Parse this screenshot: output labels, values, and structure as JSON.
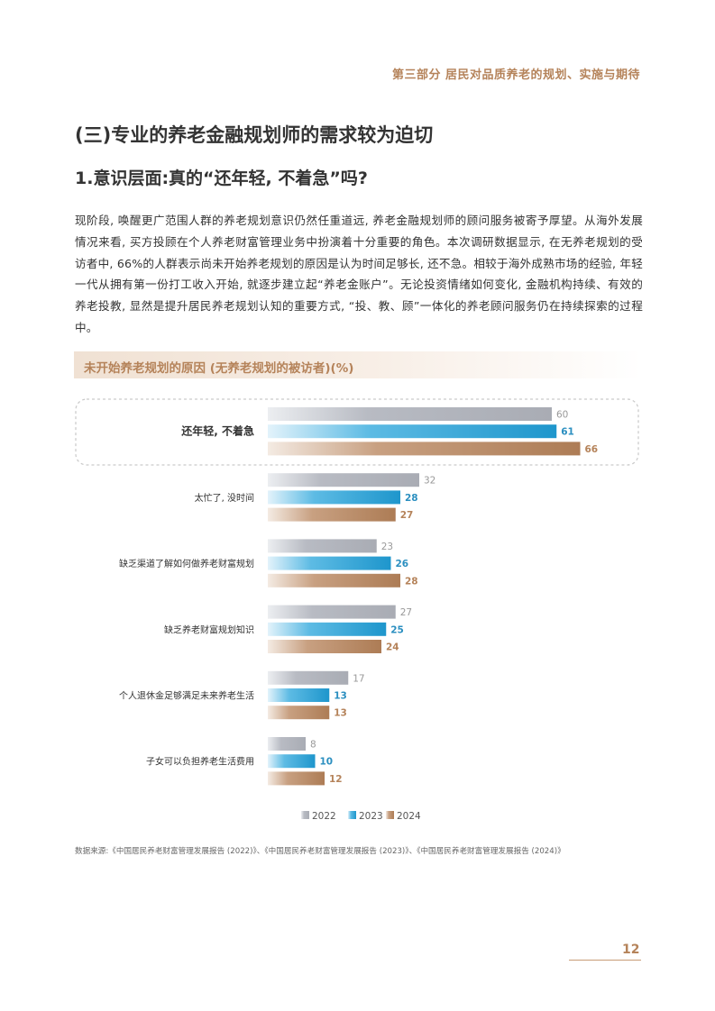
{
  "header": {
    "running_title": "第三部分 居民对品质养老的规划、实施与期待"
  },
  "section": {
    "title": "(三)专业的养老金融规划师的需求较为迫切",
    "subtitle": "1.意识层面:真的“还年轻, 不着急”吗?",
    "paragraph": "现阶段, 唤醒更广范围人群的养老规划意识仍然任重道远, 养老金融规划师的顾问服务被寄予厚望。从海外发展情况来看, 买方投顾在个人养老财富管理业务中扮演着十分重要的角色。本次调研数据显示, 在无养老规划的受访者中, 66%的人群表示尚未开始养老规划的原因是认为时间足够长, 还不急。相较于海外成熟市场的经验, 年轻一代从拥有第一份打工收入开始, 就逐步建立起“养老金账户”。无论投资情绪如何变化, 金融机构持续、有效的养老投教, 显然是提升居民养老规划认知的重要方式, “投、教、顾”一体化的养老顾问服务仍在持续探索的过程中。"
  },
  "chart_title": "未开始养老规划的原因 (无养老规划的被访者)(%)",
  "chart_data": {
    "type": "bar",
    "orientation": "horizontal",
    "title": "未开始养老规划的原因 (无养老规划的被访者)(%)",
    "categories": [
      "还年轻, 不着急",
      "太忙了, 没时间",
      "缺乏渠道了解如何做养老财富规划",
      "缺乏养老财富规划知识",
      "个人退休金足够满足未来养老生活",
      "子女可以负担养老生活费用"
    ],
    "series": [
      {
        "name": "2022",
        "values": [
          60,
          32,
          23,
          27,
          17,
          8
        ]
      },
      {
        "name": "2023",
        "values": [
          61,
          28,
          26,
          25,
          13,
          10
        ]
      },
      {
        "name": "2024",
        "values": [
          66,
          27,
          28,
          24,
          13,
          12
        ]
      }
    ],
    "highlight_category": "还年轻, 不着急",
    "legend_position": "bottom",
    "grid": false,
    "colors": {
      "2022": "#b0b3bb",
      "2023": "#2ea3d4",
      "2024": "#b5835a"
    },
    "label_colors": {
      "2022": "#999999",
      "2023": "#2b8fc0",
      "2024": "#b5835a"
    }
  },
  "source_note": "数据来源:《中国居民养老财富管理发展报告 (2022)》、《中国居民养老财富管理发展报告 (2023)》、《中国居民养老财富管理发展报告 (2024)》",
  "page_number": "12"
}
